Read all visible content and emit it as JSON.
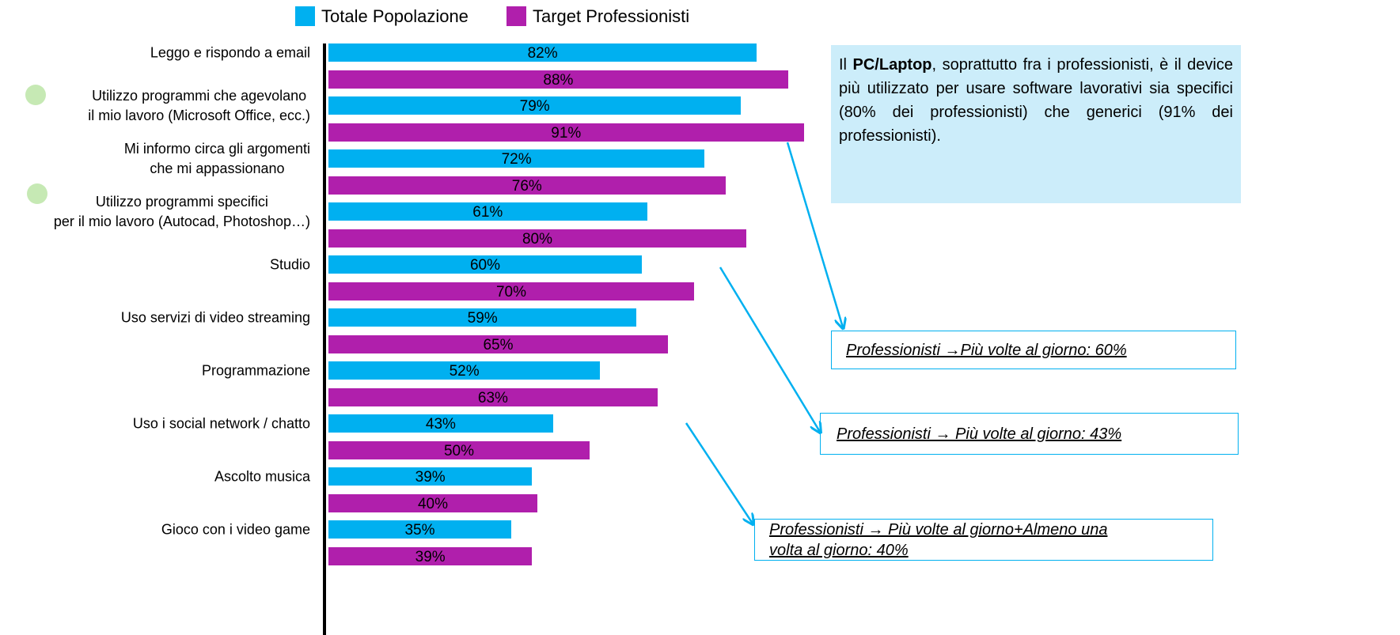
{
  "chart_data": {
    "type": "bar",
    "orientation": "horizontal",
    "categories": [
      "Leggo  e rispondo a email",
      "Utilizzo programmi che agevolano\nil mio lavoro (Microsoft Office, ecc.)",
      "Mi informo circa gli argomenti\nche mi appassionano",
      "Utilizzo programmi specifici\nper il mio lavoro (Autocad, Photoshop…)",
      "Studio",
      "Uso servizi di video streaming",
      "Programmazione",
      "Uso i social network / chatto",
      "Ascolto musica",
      "Gioco con i video game"
    ],
    "series": [
      {
        "name": "Totale Popolazione",
        "color": "#00b0f0",
        "values": [
          82,
          79,
          72,
          61,
          60,
          59,
          52,
          43,
          39,
          35
        ],
        "value_labels": [
          "82%",
          "79%",
          "72%",
          "61%",
          "60%",
          "59%",
          "52%",
          "43%",
          "39%",
          "35%"
        ]
      },
      {
        "name": "Target Professionisti",
        "color": "#b01fac",
        "values": [
          88,
          91,
          76,
          80,
          70,
          65,
          63,
          50,
          40,
          39
        ],
        "value_labels": [
          "88%",
          "91%",
          "76%",
          "80%",
          "70%",
          "65%",
          "63%",
          "50%",
          "40%",
          "39%"
        ]
      }
    ],
    "legend": "top",
    "annotations": {
      "note": [
        "Il ",
        "PC/Laptop",
        ", soprattutto fra i professionisti, è il device più utilizzato per usare software lavorativi sia specifici (80% dei professionisti) che generici (91% dei professionisti)."
      ],
      "callouts": [
        "Professionisti →Più volte al giorno: 60%",
        "Professionisti → Più volte al giorno: 43%",
        "Professionisti → Più volte al giorno+Almeno una volta al giorno: 40%"
      ]
    }
  }
}
